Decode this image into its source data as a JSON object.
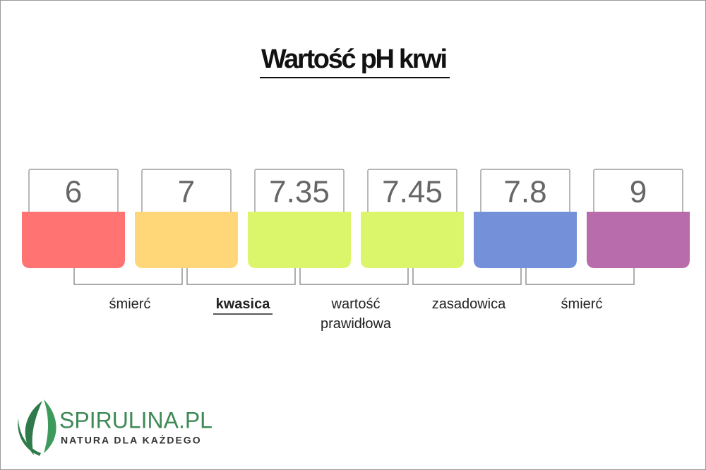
{
  "title": "Wartość pH krwi",
  "ph_values": [
    "6",
    "7",
    "7.35",
    "7.45",
    "7.8",
    "9"
  ],
  "colors": [
    "#ff7472",
    "#ffd779",
    "#dcf66b",
    "#dcf66b",
    "#7490d8",
    "#b86cab"
  ],
  "labels": [
    [
      "śmierć"
    ],
    [
      "kwasica"
    ],
    [
      "wartość",
      "prawidłowa"
    ],
    [
      "zasadowica"
    ],
    [
      "śmierć"
    ]
  ],
  "logo": {
    "name": "SPIRULINA.PL",
    "tagline": "NATURA DLA KAŻDEGO"
  }
}
